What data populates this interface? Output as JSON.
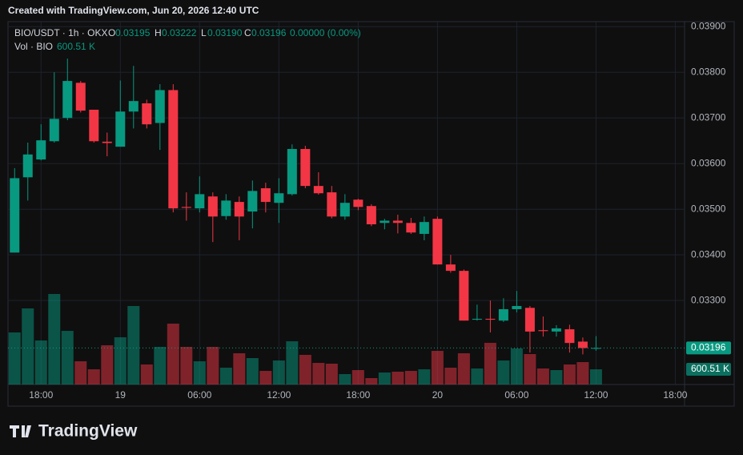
{
  "chart_data": {
    "type": "candlestick",
    "caption": "Created with TradingView.com, Jun 20, 2026 12:40 UTC",
    "brand": "TradingView",
    "legend": {
      "symbol": "BIO/USDT · 1h · OKX",
      "o_key": "O",
      "o": "0.03195",
      "h_key": "H",
      "h": "0.03222",
      "l_key": "L",
      "l": "0.03190",
      "c_key": "C",
      "c": "0.03196",
      "change": "0.00000 (0.00%)",
      "vol_key": "Vol · BIO",
      "vol": "600.51 K"
    },
    "open": [
      0.03405,
      0.0357,
      0.03609,
      0.03649,
      0.037,
      0.03777,
      0.03718,
      0.03648,
      0.03637,
      0.03714,
      0.03732,
      0.03689,
      0.03761,
      0.03505,
      0.03502,
      0.03528,
      0.03485,
      0.03516,
      0.03495,
      0.03546,
      0.03514,
      0.03533,
      0.03632,
      0.03551,
      0.03537,
      0.03484,
      0.03521,
      0.03507,
      0.0347,
      0.03475,
      0.0347,
      0.03446,
      0.03479,
      0.03379,
      0.03365,
      0.03258,
      0.0326,
      0.03256,
      0.03281,
      0.03284,
      0.03235,
      0.03232,
      0.03237,
      0.0321,
      0.03195
    ],
    "high": [
      0.0359,
      0.03646,
      0.03686,
      0.038,
      0.0383,
      0.03781,
      0.03718,
      0.03668,
      0.03782,
      0.03814,
      0.0374,
      0.03774,
      0.03774,
      0.03537,
      0.03572,
      0.03537,
      0.03533,
      0.03528,
      0.03563,
      0.03558,
      0.03568,
      0.03642,
      0.03639,
      0.03581,
      0.03551,
      0.03533,
      0.03523,
      0.03511,
      0.03479,
      0.03488,
      0.03481,
      0.03484,
      0.03484,
      0.034,
      0.03368,
      0.03291,
      0.033,
      0.03305,
      0.03321,
      0.03288,
      0.03265,
      0.03246,
      0.03247,
      0.03219,
      0.03222
    ],
    "low": [
      0.03405,
      0.03519,
      0.03607,
      0.03646,
      0.03695,
      0.03712,
      0.03646,
      0.03616,
      0.03637,
      0.03677,
      0.03677,
      0.0363,
      0.03493,
      0.03475,
      0.03493,
      0.03428,
      0.03477,
      0.03432,
      0.03458,
      0.03493,
      0.0347,
      0.0353,
      0.03546,
      0.03532,
      0.0348,
      0.03477,
      0.03498,
      0.03463,
      0.03456,
      0.03447,
      0.03446,
      0.03432,
      0.03379,
      0.03361,
      0.03256,
      0.03256,
      0.0323,
      0.03253,
      0.03274,
      0.03186,
      0.03221,
      0.03221,
      0.03186,
      0.03182,
      0.0319
    ],
    "close": [
      0.03568,
      0.0362,
      0.03651,
      0.03698,
      0.03781,
      0.03716,
      0.03649,
      0.03645,
      0.03714,
      0.03737,
      0.03686,
      0.03761,
      0.03502,
      0.03503,
      0.03533,
      0.03484,
      0.03519,
      0.03484,
      0.0354,
      0.03516,
      0.03535,
      0.03632,
      0.03551,
      0.03535,
      0.03484,
      0.03514,
      0.03505,
      0.03467,
      0.03475,
      0.0347,
      0.03449,
      0.03472,
      0.03379,
      0.03365,
      0.03256,
      0.0326,
      0.03258,
      0.03281,
      0.03288,
      0.03232,
      0.03233,
      0.03239,
      0.03207,
      0.03196,
      0.03196
    ],
    "close_label": "0.03196",
    "volume": [
      2054,
      3002,
      1738,
      3571,
      2117,
      916,
      600,
      1548,
      1864,
      3097,
      790,
      1485,
      2402,
      1485,
      916,
      1485,
      664,
      1232,
      1043,
      537,
      948,
      1706,
      1169,
      853,
      822,
      411,
      569,
      253,
      474,
      506,
      537,
      600,
      1327,
      664,
      1232,
      632,
      1643,
      948,
      1422,
      1201,
      632,
      569,
      790,
      885,
      600.51
    ],
    "volume_label": "600.51 K",
    "up_color": "#089981",
    "down_color": "#f23645",
    "ylim": [
      0.03116,
      0.03911
    ],
    "yticks": [
      {
        "value": 0.039,
        "label": "0.03900"
      },
      {
        "value": 0.038,
        "label": "0.03800"
      },
      {
        "value": 0.037,
        "label": "0.03700"
      },
      {
        "value": 0.036,
        "label": "0.03600"
      },
      {
        "value": 0.035,
        "label": "0.03500"
      },
      {
        "value": 0.034,
        "label": "0.03400"
      },
      {
        "value": 0.033,
        "label": "0.03300"
      }
    ],
    "xlim": [
      -0.5,
      50.7
    ],
    "xticks": [
      {
        "value": 2,
        "label": "18:00"
      },
      {
        "value": 8,
        "label": "19"
      },
      {
        "value": 14,
        "label": "06:00"
      },
      {
        "value": 20,
        "label": "12:00"
      },
      {
        "value": 26,
        "label": "18:00"
      },
      {
        "value": 32,
        "label": "20"
      },
      {
        "value": 38,
        "label": "06:00"
      },
      {
        "value": 44,
        "label": "12:00"
      },
      {
        "value": 50,
        "label": "18:00"
      }
    ],
    "grid": true
  }
}
